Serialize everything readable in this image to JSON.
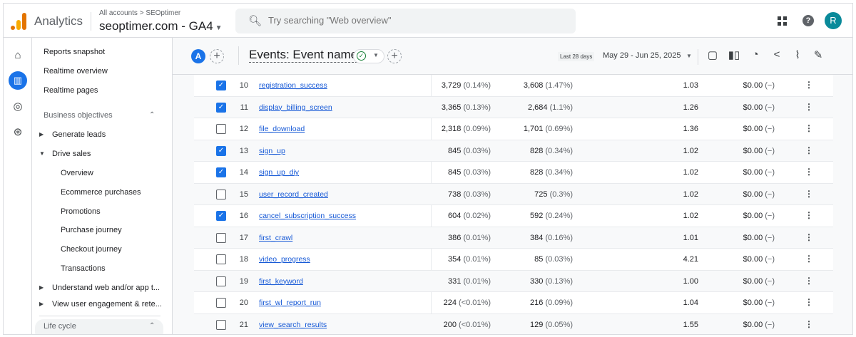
{
  "header": {
    "app_name": "Analytics",
    "breadcrumb": "All accounts > SEOptimer",
    "property": "seoptimer.com - GA4",
    "search_placeholder": "Try searching \"Web overview\"",
    "avatar_letter": "R"
  },
  "rail": {
    "icons": [
      "home-icon",
      "reports-icon",
      "explore-icon",
      "advertising-icon"
    ],
    "selected": "reports-icon"
  },
  "sidebar": {
    "top_items": [
      "Reports snapshot",
      "Realtime overview",
      "Realtime pages"
    ],
    "section": "Business objectives",
    "groups": [
      "Generate leads",
      "Drive sales"
    ],
    "drive_sales_items": [
      "Overview",
      "Ecommerce purchases",
      "Promotions",
      "Purchase journey",
      "Checkout journey",
      "Transactions"
    ],
    "more_groups": [
      "Understand web and/or app t...",
      "View user engagement & rete..."
    ],
    "next_section": "Life cycle"
  },
  "toolbar": {
    "comparison": "A",
    "title": "Events: Event name",
    "date_label": "Last 28 days",
    "date_range": "May 29 - Jun 25, 2025"
  },
  "colors": {
    "accent": "#1a73e8",
    "avatar": "#0a8a9a",
    "logo": [
      "#f9ab00",
      "#e37400"
    ]
  },
  "table": {
    "rows": [
      {
        "n": "10",
        "name": "registration_success",
        "checked": true,
        "c1": "3,729",
        "p1": "(0.14%)",
        "c2": "3,608",
        "p2": "(1.47%)",
        "c3": "1.03",
        "c4": "$0.00",
        "p4": "(−)"
      },
      {
        "n": "11",
        "name": "display_billing_screen",
        "checked": true,
        "c1": "3,365",
        "p1": "(0.13%)",
        "c2": "2,684",
        "p2": "(1.1%)",
        "c3": "1.26",
        "c4": "$0.00",
        "p4": "(−)"
      },
      {
        "n": "12",
        "name": "file_download",
        "checked": false,
        "c1": "2,318",
        "p1": "(0.09%)",
        "c2": "1,701",
        "p2": "(0.69%)",
        "c3": "1.36",
        "c4": "$0.00",
        "p4": "(−)"
      },
      {
        "n": "13",
        "name": "sign_up",
        "checked": true,
        "c1": "845",
        "p1": "(0.03%)",
        "c2": "828",
        "p2": "(0.34%)",
        "c3": "1.02",
        "c4": "$0.00",
        "p4": "(−)"
      },
      {
        "n": "14",
        "name": "sign_up_diy",
        "checked": true,
        "c1": "845",
        "p1": "(0.03%)",
        "c2": "828",
        "p2": "(0.34%)",
        "c3": "1.02",
        "c4": "$0.00",
        "p4": "(−)"
      },
      {
        "n": "15",
        "name": "user_record_created",
        "checked": false,
        "c1": "738",
        "p1": "(0.03%)",
        "c2": "725",
        "p2": "(0.3%)",
        "c3": "1.02",
        "c4": "$0.00",
        "p4": "(−)"
      },
      {
        "n": "16",
        "name": "cancel_subscription_success",
        "checked": true,
        "c1": "604",
        "p1": "(0.02%)",
        "c2": "592",
        "p2": "(0.24%)",
        "c3": "1.02",
        "c4": "$0.00",
        "p4": "(−)"
      },
      {
        "n": "17",
        "name": "first_crawl",
        "checked": false,
        "c1": "386",
        "p1": "(0.01%)",
        "c2": "384",
        "p2": "(0.16%)",
        "c3": "1.01",
        "c4": "$0.00",
        "p4": "(−)"
      },
      {
        "n": "18",
        "name": "video_progress",
        "checked": false,
        "c1": "354",
        "p1": "(0.01%)",
        "c2": "85",
        "p2": "(0.03%)",
        "c3": "4.21",
        "c4": "$0.00",
        "p4": "(−)"
      },
      {
        "n": "19",
        "name": "first_keyword",
        "checked": false,
        "c1": "331",
        "p1": "(0.01%)",
        "c2": "330",
        "p2": "(0.13%)",
        "c3": "1.00",
        "c4": "$0.00",
        "p4": "(−)"
      },
      {
        "n": "20",
        "name": "first_wl_report_run",
        "checked": false,
        "c1": "224",
        "p1": "(<0.01%)",
        "c2": "216",
        "p2": "(0.09%)",
        "c3": "1.04",
        "c4": "$0.00",
        "p4": "(−)"
      },
      {
        "n": "21",
        "name": "view_search_results",
        "checked": false,
        "c1": "200",
        "p1": "(<0.01%)",
        "c2": "129",
        "p2": "(0.05%)",
        "c3": "1.55",
        "c4": "$0.00",
        "p4": "(−)"
      }
    ]
  }
}
